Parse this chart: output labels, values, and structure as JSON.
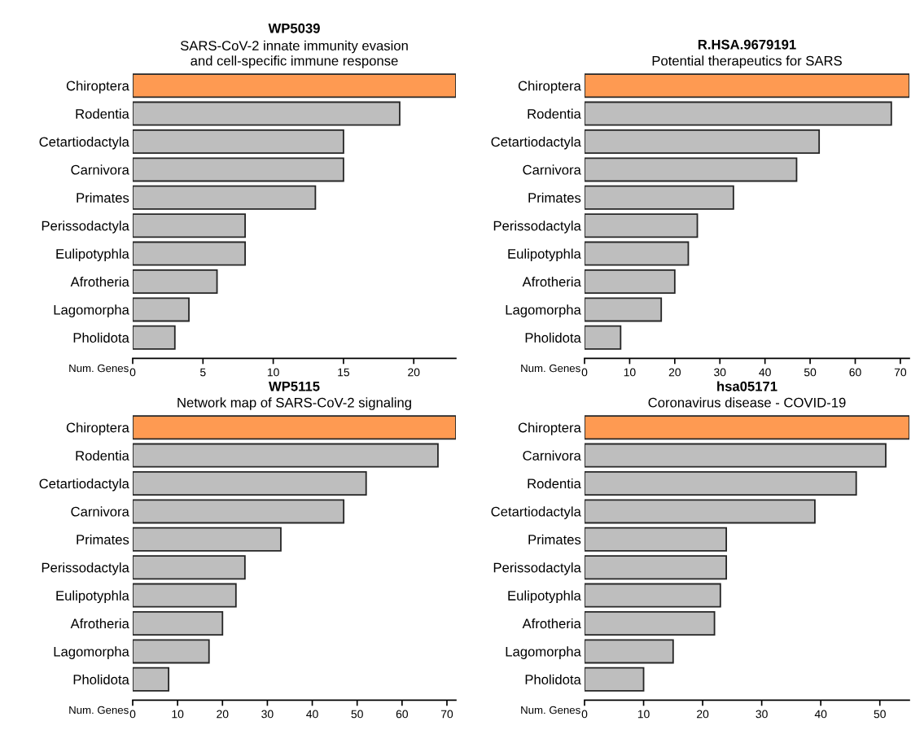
{
  "chart_data": [
    {
      "type": "bar",
      "orientation": "horizontal",
      "title": "WP5039",
      "subtitle": "SARS-CoV-2 innate immunity evasion\nand cell-specific immune response",
      "xlabel": "Num. Genes",
      "categories": [
        "Chiroptera",
        "Rodentia",
        "Cetartiodactyla",
        "Carnivora",
        "Primates",
        "Perissodactyla",
        "Eulipotyphla",
        "Afrotheria",
        "Lagomorpha",
        "Pholidota"
      ],
      "values": [
        23,
        19,
        15,
        15,
        13,
        8,
        8,
        6,
        4,
        3
      ],
      "colors": [
        "#fe9a52",
        "#bebebe",
        "#bebebe",
        "#bebebe",
        "#bebebe",
        "#bebebe",
        "#bebebe",
        "#bebebe",
        "#bebebe",
        "#bebebe"
      ],
      "xlim": [
        0,
        23
      ],
      "xticks": [
        0,
        5,
        10,
        15,
        20
      ],
      "grid": false,
      "legend": false
    },
    {
      "type": "bar",
      "orientation": "horizontal",
      "title": "R.HSA.9679191",
      "subtitle": "Potential therapeutics for SARS",
      "xlabel": "Num. Genes",
      "categories": [
        "Chiroptera",
        "Rodentia",
        "Cetartiodactyla",
        "Carnivora",
        "Primates",
        "Perissodactyla",
        "Eulipotyphla",
        "Afrotheria",
        "Lagomorpha",
        "Pholidota"
      ],
      "values": [
        72,
        68,
        52,
        47,
        33,
        25,
        23,
        20,
        17,
        8
      ],
      "colors": [
        "#fe9a52",
        "#bebebe",
        "#bebebe",
        "#bebebe",
        "#bebebe",
        "#bebebe",
        "#bebebe",
        "#bebebe",
        "#bebebe",
        "#bebebe"
      ],
      "xlim": [
        0,
        72
      ],
      "xticks": [
        0,
        10,
        20,
        30,
        40,
        50,
        60,
        70
      ],
      "grid": false,
      "legend": false
    },
    {
      "type": "bar",
      "orientation": "horizontal",
      "title": "WP5115",
      "subtitle": "Network map of SARS-CoV-2 signaling",
      "xlabel": "Num. Genes",
      "categories": [
        "Chiroptera",
        "Rodentia",
        "Cetartiodactyla",
        "Carnivora",
        "Primates",
        "Perissodactyla",
        "Eulipotyphla",
        "Afrotheria",
        "Lagomorpha",
        "Pholidota"
      ],
      "values": [
        72,
        68,
        52,
        47,
        33,
        25,
        23,
        20,
        17,
        8
      ],
      "colors": [
        "#fe9a52",
        "#bebebe",
        "#bebebe",
        "#bebebe",
        "#bebebe",
        "#bebebe",
        "#bebebe",
        "#bebebe",
        "#bebebe",
        "#bebebe"
      ],
      "xlim": [
        0,
        72
      ],
      "xticks": [
        0,
        10,
        20,
        30,
        40,
        50,
        60,
        70
      ],
      "grid": false,
      "legend": false
    },
    {
      "type": "bar",
      "orientation": "horizontal",
      "title": "hsa05171",
      "subtitle": "Coronavirus disease - COVID-19",
      "xlabel": "Num. Genes",
      "categories": [
        "Chiroptera",
        "Carnivora",
        "Rodentia",
        "Cetartiodactyla",
        "Primates",
        "Perissodactyla",
        "Eulipotyphla",
        "Afrotheria",
        "Lagomorpha",
        "Pholidota"
      ],
      "values": [
        55,
        51,
        46,
        39,
        24,
        24,
        23,
        22,
        15,
        10
      ],
      "colors": [
        "#fe9a52",
        "#bebebe",
        "#bebebe",
        "#bebebe",
        "#bebebe",
        "#bebebe",
        "#bebebe",
        "#bebebe",
        "#bebebe",
        "#bebebe"
      ],
      "xlim": [
        0,
        55
      ],
      "xticks": [
        0,
        10,
        20,
        30,
        40,
        50
      ],
      "grid": false,
      "legend": false
    }
  ]
}
